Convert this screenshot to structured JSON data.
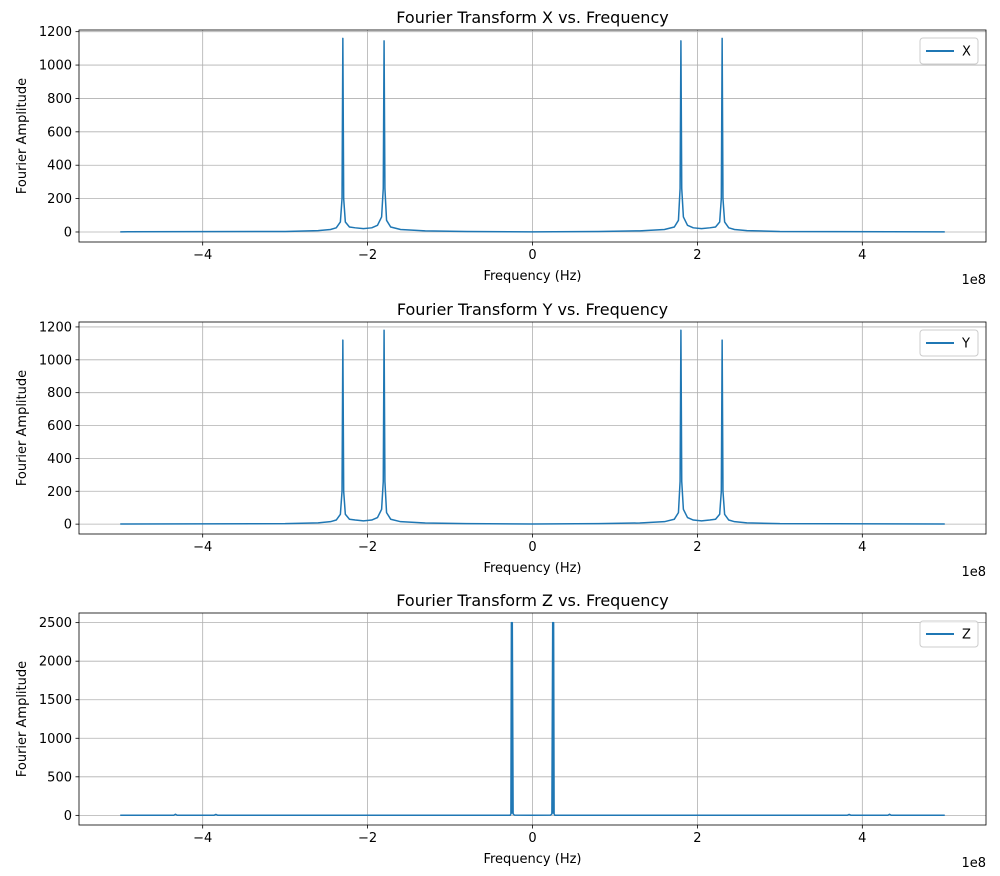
{
  "figure": {
    "colors": {
      "line": "#1f77b4",
      "grid": "#b0b0b0",
      "axes": "#000000",
      "background": "#ffffff"
    }
  },
  "chart_data": [
    {
      "type": "line",
      "title": "Fourier Transform X vs. Frequency",
      "xlabel": "Frequency (Hz)",
      "ylabel": "Fourier Amplitude",
      "x_offset_label": "1e8",
      "xlim": [
        -550000000.0,
        550000000.0
      ],
      "ylim": [
        -60,
        1210
      ],
      "xticks": [
        -400000000.0,
        -200000000.0,
        0,
        200000000.0,
        400000000.0
      ],
      "xtick_labels": [
        "−4",
        "−2",
        "0",
        "2",
        "4"
      ],
      "yticks": [
        0,
        200,
        400,
        600,
        800,
        1000,
        1200
      ],
      "ytick_labels": [
        "0",
        "200",
        "400",
        "600",
        "800",
        "1000",
        "1200"
      ],
      "grid": true,
      "legend_position": "upper right",
      "series": [
        {
          "name": "X",
          "x": [
            -500000000.0,
            -300000000.0,
            -260000000.0,
            -245000000.0,
            -238000000.0,
            -233000000.0,
            -231000000.0,
            -230000000.0,
            -229000000.0,
            -227000000.0,
            -222000000.0,
            -215000000.0,
            -205000000.0,
            -195000000.0,
            -188000000.0,
            -183000000.0,
            -181000000.0,
            -180000000.0,
            -179000000.0,
            -177000000.0,
            -172000000.0,
            -160000000.0,
            -130000000.0,
            -80000000.0,
            0,
            80000000.0,
            130000000.0,
            160000000.0,
            172000000.0,
            177000000.0,
            179000000.0,
            180000000.0,
            181000000.0,
            183000000.0,
            188000000.0,
            195000000.0,
            205000000.0,
            215000000.0,
            222000000.0,
            227000000.0,
            229000000.0,
            230000000.0,
            231000000.0,
            233000000.0,
            238000000.0,
            245000000.0,
            260000000.0,
            300000000.0,
            500000000.0
          ],
          "y": [
            1,
            3,
            8,
            15,
            25,
            60,
            200,
            1160,
            200,
            60,
            30,
            25,
            20,
            25,
            40,
            90,
            260,
            1145,
            260,
            70,
            30,
            15,
            7,
            3,
            1,
            3,
            7,
            15,
            30,
            70,
            260,
            1145,
            260,
            90,
            40,
            25,
            20,
            25,
            30,
            60,
            200,
            1160,
            200,
            60,
            25,
            15,
            8,
            3,
            1
          ]
        }
      ]
    },
    {
      "type": "line",
      "title": "Fourier Transform Y vs. Frequency",
      "xlabel": "Frequency (Hz)",
      "ylabel": "Fourier Amplitude",
      "x_offset_label": "1e8",
      "xlim": [
        -550000000.0,
        550000000.0
      ],
      "ylim": [
        -60,
        1230
      ],
      "xticks": [
        -400000000.0,
        -200000000.0,
        0,
        200000000.0,
        400000000.0
      ],
      "xtick_labels": [
        "−4",
        "−2",
        "0",
        "2",
        "4"
      ],
      "yticks": [
        0,
        200,
        400,
        600,
        800,
        1000,
        1200
      ],
      "ytick_labels": [
        "0",
        "200",
        "400",
        "600",
        "800",
        "1000",
        "1200"
      ],
      "grid": true,
      "legend_position": "upper right",
      "series": [
        {
          "name": "Y",
          "x": [
            -500000000.0,
            -300000000.0,
            -260000000.0,
            -245000000.0,
            -238000000.0,
            -233000000.0,
            -231000000.0,
            -230000000.0,
            -229000000.0,
            -227000000.0,
            -222000000.0,
            -215000000.0,
            -205000000.0,
            -195000000.0,
            -188000000.0,
            -183000000.0,
            -181000000.0,
            -180000000.0,
            -179000000.0,
            -177000000.0,
            -172000000.0,
            -160000000.0,
            -130000000.0,
            -80000000.0,
            0,
            80000000.0,
            130000000.0,
            160000000.0,
            172000000.0,
            177000000.0,
            179000000.0,
            180000000.0,
            181000000.0,
            183000000.0,
            188000000.0,
            195000000.0,
            205000000.0,
            215000000.0,
            222000000.0,
            227000000.0,
            229000000.0,
            230000000.0,
            231000000.0,
            233000000.0,
            238000000.0,
            245000000.0,
            260000000.0,
            300000000.0,
            500000000.0
          ],
          "y": [
            1,
            3,
            8,
            15,
            25,
            60,
            200,
            1120,
            200,
            60,
            30,
            25,
            20,
            25,
            40,
            90,
            260,
            1180,
            260,
            70,
            30,
            15,
            7,
            3,
            1,
            3,
            7,
            15,
            30,
            70,
            260,
            1180,
            260,
            90,
            40,
            25,
            20,
            25,
            30,
            60,
            200,
            1120,
            200,
            60,
            25,
            15,
            8,
            3,
            1
          ]
        }
      ]
    },
    {
      "type": "line",
      "title": "Fourier Transform Z vs. Frequency",
      "xlabel": "Frequency (Hz)",
      "ylabel": "Fourier Amplitude",
      "x_offset_label": "1e8",
      "xlim": [
        -550000000.0,
        550000000.0
      ],
      "ylim": [
        -125,
        2625
      ],
      "xticks": [
        -400000000.0,
        -200000000.0,
        0,
        200000000.0,
        400000000.0
      ],
      "xtick_labels": [
        "−4",
        "−2",
        "0",
        "2",
        "4"
      ],
      "yticks": [
        0,
        500,
        1000,
        1500,
        2000,
        2500
      ],
      "ytick_labels": [
        "0",
        "500",
        "1000",
        "1500",
        "2000",
        "2500"
      ],
      "grid": true,
      "legend_position": "upper right",
      "series": [
        {
          "name": "Z",
          "x": [
            -500000000.0,
            -435000000.0,
            -433000000.0,
            -431000000.0,
            -386000000.0,
            -384000000.0,
            -382000000.0,
            -260000000.0,
            -27000000.0,
            -26200000.0,
            -25600000.0,
            -25000000.0,
            -24500000.0,
            -23500000.0,
            -22000000.0,
            0,
            22000000.0,
            23500000.0,
            24500000.0,
            25000000.0,
            25600000.0,
            26200000.0,
            27000000.0,
            260000000.0,
            382000000.0,
            384000000.0,
            386000000.0,
            431000000.0,
            433000000.0,
            435000000.0,
            500000000.0
          ],
          "y": [
            1,
            2,
            15,
            2,
            2,
            12,
            2,
            1,
            2,
            20,
            2500,
            30,
            2500,
            20,
            3,
            1,
            3,
            20,
            2500,
            30,
            2500,
            20,
            2,
            1,
            2,
            12,
            2,
            2,
            15,
            2,
            1
          ]
        }
      ]
    }
  ]
}
